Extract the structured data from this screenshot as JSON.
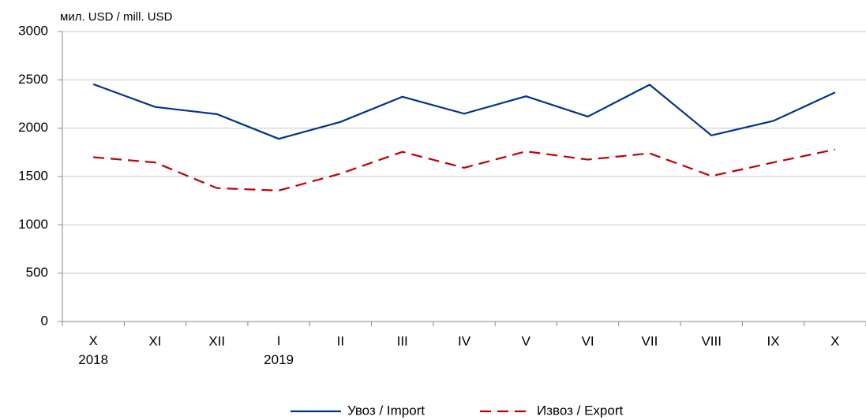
{
  "chart_data": {
    "type": "line",
    "y_axis_label": "мил. USD / mill. USD",
    "categories": [
      "X\n2018",
      "XI",
      "XII",
      "I\n2019",
      "II",
      "III",
      "IV",
      "V",
      "VI",
      "VII",
      "VIII",
      "IX",
      "X"
    ],
    "series": [
      {
        "name": "Увоз / Import",
        "color": "#00338d",
        "dash": "solid",
        "values": [
          2455,
          2220,
          2145,
          1890,
          2065,
          2325,
          2150,
          2330,
          2120,
          2450,
          1925,
          2075,
          2370
        ]
      },
      {
        "name": "Извоз / Export",
        "color": "#c00000",
        "dash": "dashed",
        "values": [
          1700,
          1645,
          1380,
          1355,
          1530,
          1755,
          1590,
          1760,
          1675,
          1740,
          1505,
          1645,
          1780
        ]
      }
    ],
    "ylim": [
      0,
      3000
    ],
    "yticks": [
      0,
      500,
      1000,
      1500,
      2000,
      2500,
      3000
    ],
    "grid": true,
    "legend": "bottom"
  }
}
